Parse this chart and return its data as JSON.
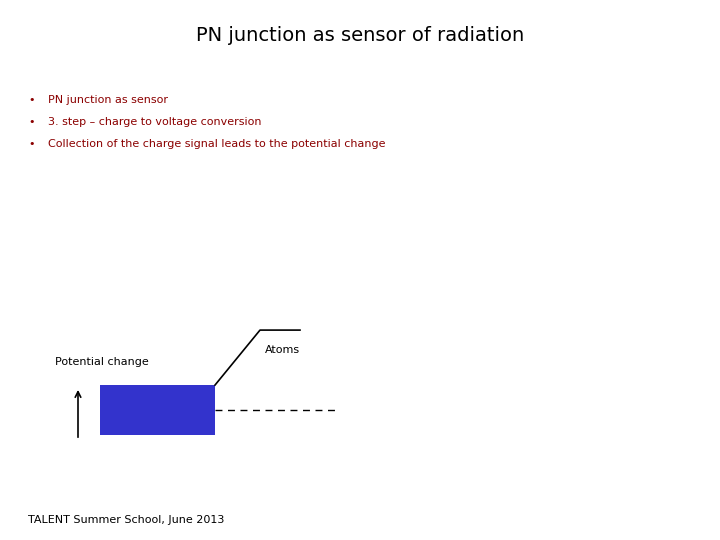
{
  "title": "PN junction as sensor of radiation",
  "bg_color": "#ffffff",
  "header_white_bg": "#ffffff",
  "header_bar_color": "#8b0000",
  "bullet_color": "#8b0000",
  "bullet_points": [
    "PN junction as sensor",
    "3. step – charge to voltage conversion",
    "Collection of the charge signal leads to the potential change"
  ],
  "diagram_label_potential": "Potential change",
  "diagram_label_atoms": "Atoms",
  "footer_text": "TALENT Summer School, June 2013",
  "rect_facecolor": "#3333cc",
  "rect_edgecolor": "#3333cc"
}
